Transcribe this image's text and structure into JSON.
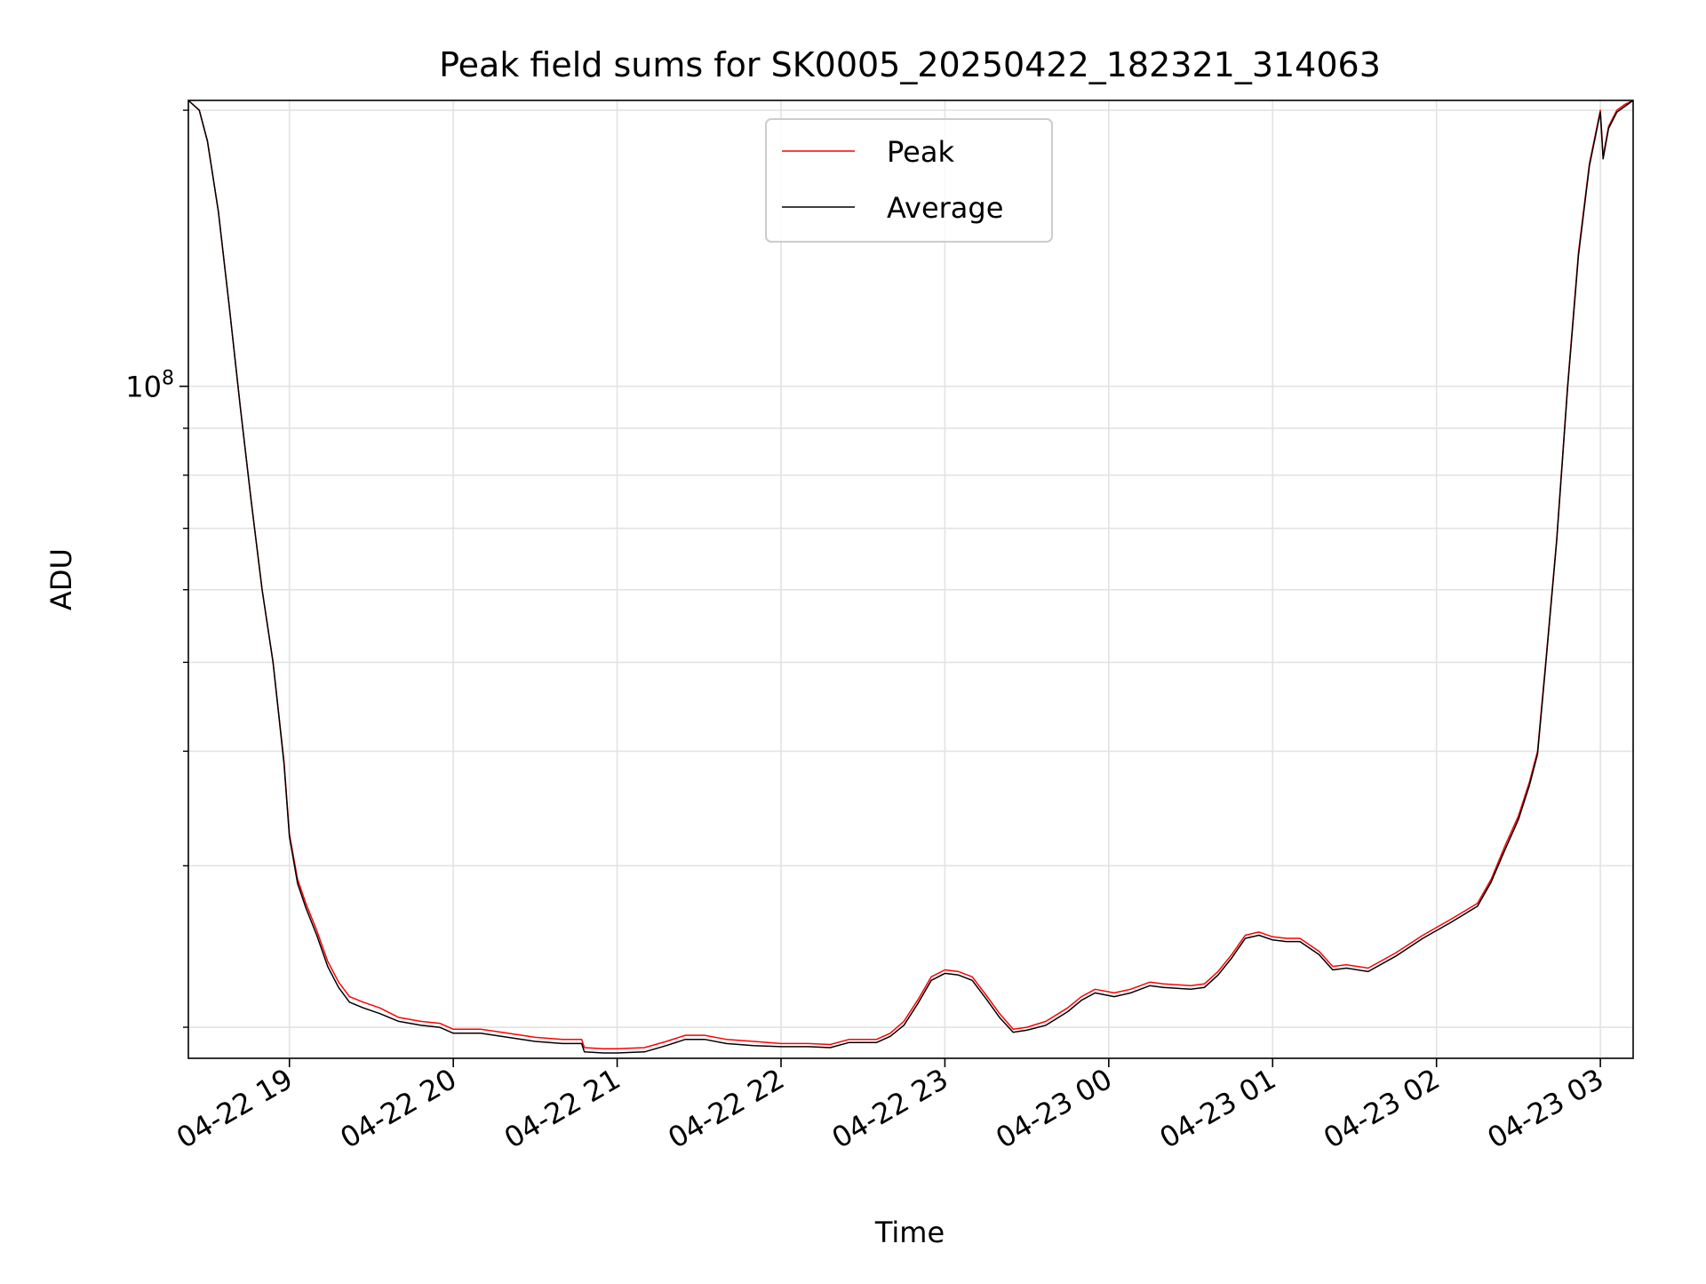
{
  "chart_data": {
    "type": "line",
    "title": "Peak field sums for SK0005_20250422_182321_314063",
    "xlabel": "Time",
    "ylabel": "ADU",
    "y_scale": "log",
    "grid": "on",
    "legend_placement": "upper center",
    "x_range": [
      "2025-04-22 18:23",
      "2025-04-23 03:12"
    ],
    "y_range": [
      18500000,
      205000000
    ],
    "x_ticks": [
      {
        "t": "2025-04-22 19:00",
        "label": "04-22 19"
      },
      {
        "t": "2025-04-22 20:00",
        "label": "04-22 20"
      },
      {
        "t": "2025-04-22 21:00",
        "label": "04-22 21"
      },
      {
        "t": "2025-04-22 22:00",
        "label": "04-22 22"
      },
      {
        "t": "2025-04-22 23:00",
        "label": "04-22 23"
      },
      {
        "t": "2025-04-23 00:00",
        "label": "04-23 00"
      },
      {
        "t": "2025-04-23 01:00",
        "label": "04-23 01"
      },
      {
        "t": "2025-04-23 02:00",
        "label": "04-23 02"
      },
      {
        "t": "2025-04-23 03:00",
        "label": "04-23 03"
      }
    ],
    "y_major_ticks": [
      {
        "value": 100000000,
        "base": "10",
        "exp": "8"
      }
    ],
    "y_minor_ticks": [
      20000000,
      30000000,
      40000000,
      50000000,
      60000000,
      70000000,
      80000000,
      90000000,
      200000000
    ],
    "series": [
      {
        "name": "Peak",
        "color": "#ff0000",
        "points": [
          [
            "2025-04-22 18:23",
            205000000
          ],
          [
            "2025-04-22 18:27",
            200000000
          ],
          [
            "2025-04-22 18:30",
            185000000
          ],
          [
            "2025-04-22 18:34",
            155000000
          ],
          [
            "2025-04-22 18:38",
            122000000
          ],
          [
            "2025-04-22 18:42",
            95000000
          ],
          [
            "2025-04-22 18:46",
            75000000
          ],
          [
            "2025-04-22 18:50",
            60000000
          ],
          [
            "2025-04-22 18:54",
            50000000
          ],
          [
            "2025-04-22 18:58",
            39000000
          ],
          [
            "2025-04-22 19:00",
            32500000
          ],
          [
            "2025-04-22 19:03",
            29000000
          ],
          [
            "2025-04-22 19:06",
            27300000
          ],
          [
            "2025-04-22 19:10",
            25500000
          ],
          [
            "2025-04-22 19:14",
            23600000
          ],
          [
            "2025-04-22 19:18",
            22400000
          ],
          [
            "2025-04-22 19:22",
            21600000
          ],
          [
            "2025-04-22 19:27",
            21300000
          ],
          [
            "2025-04-22 19:33",
            21000000
          ],
          [
            "2025-04-22 19:40",
            20500000
          ],
          [
            "2025-04-22 19:48",
            20300000
          ],
          [
            "2025-04-22 19:55",
            20200000
          ],
          [
            "2025-04-22 20:00",
            19900000
          ],
          [
            "2025-04-22 20:10",
            19900000
          ],
          [
            "2025-04-22 20:20",
            19700000
          ],
          [
            "2025-04-22 20:30",
            19500000
          ],
          [
            "2025-04-22 20:40",
            19400000
          ],
          [
            "2025-04-22 20:47",
            19400000
          ],
          [
            "2025-04-22 20:48",
            19000000
          ],
          [
            "2025-04-22 20:55",
            18950000
          ],
          [
            "2025-04-22 21:00",
            18950000
          ],
          [
            "2025-04-22 21:10",
            19000000
          ],
          [
            "2025-04-22 21:18",
            19300000
          ],
          [
            "2025-04-22 21:25",
            19600000
          ],
          [
            "2025-04-22 21:32",
            19600000
          ],
          [
            "2025-04-22 21:40",
            19400000
          ],
          [
            "2025-04-22 21:50",
            19300000
          ],
          [
            "2025-04-22 22:00",
            19200000
          ],
          [
            "2025-04-22 22:10",
            19200000
          ],
          [
            "2025-04-22 22:18",
            19150000
          ],
          [
            "2025-04-22 22:25",
            19400000
          ],
          [
            "2025-04-22 22:35",
            19400000
          ],
          [
            "2025-04-22 22:40",
            19700000
          ],
          [
            "2025-04-22 22:45",
            20300000
          ],
          [
            "2025-04-22 22:50",
            21400000
          ],
          [
            "2025-04-22 22:55",
            22700000
          ],
          [
            "2025-04-22 23:00",
            23100000
          ],
          [
            "2025-04-22 23:05",
            23000000
          ],
          [
            "2025-04-22 23:10",
            22700000
          ],
          [
            "2025-04-22 23:15",
            21700000
          ],
          [
            "2025-04-22 23:20",
            20700000
          ],
          [
            "2025-04-22 23:25",
            19900000
          ],
          [
            "2025-04-22 23:30",
            20000000
          ],
          [
            "2025-04-22 23:37",
            20300000
          ],
          [
            "2025-04-22 23:45",
            21000000
          ],
          [
            "2025-04-22 23:50",
            21600000
          ],
          [
            "2025-04-22 23:55",
            22000000
          ],
          [
            "2025-04-23 00:02",
            21800000
          ],
          [
            "2025-04-23 00:08",
            22000000
          ],
          [
            "2025-04-23 00:15",
            22400000
          ],
          [
            "2025-04-23 00:20",
            22300000
          ],
          [
            "2025-04-23 00:30",
            22200000
          ],
          [
            "2025-04-23 00:35",
            22300000
          ],
          [
            "2025-04-23 00:40",
            23000000
          ],
          [
            "2025-04-23 00:45",
            24000000
          ],
          [
            "2025-04-23 00:50",
            25200000
          ],
          [
            "2025-04-23 00:55",
            25400000
          ],
          [
            "2025-04-23 01:00",
            25100000
          ],
          [
            "2025-04-23 01:05",
            25000000
          ],
          [
            "2025-04-23 01:10",
            25000000
          ],
          [
            "2025-04-23 01:17",
            24200000
          ],
          [
            "2025-04-23 01:22",
            23300000
          ],
          [
            "2025-04-23 01:27",
            23400000
          ],
          [
            "2025-04-23 01:35",
            23200000
          ],
          [
            "2025-04-23 01:45",
            24100000
          ],
          [
            "2025-04-23 01:55",
            25200000
          ],
          [
            "2025-04-23 02:05",
            26200000
          ],
          [
            "2025-04-23 02:15",
            27300000
          ],
          [
            "2025-04-23 02:20",
            29000000
          ],
          [
            "2025-04-23 02:25",
            31500000
          ],
          [
            "2025-04-23 02:30",
            34000000
          ],
          [
            "2025-04-23 02:34",
            37000000
          ],
          [
            "2025-04-23 02:37",
            40000000
          ],
          [
            "2025-04-23 02:40",
            50000000
          ],
          [
            "2025-04-23 02:44",
            68000000
          ],
          [
            "2025-04-23 02:48",
            100000000
          ],
          [
            "2025-04-23 02:52",
            140000000
          ],
          [
            "2025-04-23 02:56",
            175000000
          ],
          [
            "2025-04-23 03:00",
            200000000
          ],
          [
            "2025-04-23 03:01",
            178000000
          ],
          [
            "2025-04-23 03:03",
            192000000
          ],
          [
            "2025-04-23 03:06",
            200000000
          ],
          [
            "2025-04-23 03:09",
            203000000
          ],
          [
            "2025-04-23 03:12",
            205000000
          ]
        ]
      },
      {
        "name": "Average",
        "color": "#000000",
        "points": [
          [
            "2025-04-22 18:23",
            205000000
          ],
          [
            "2025-04-22 18:27",
            200000000
          ],
          [
            "2025-04-22 18:30",
            185000000
          ],
          [
            "2025-04-22 18:34",
            155000000
          ],
          [
            "2025-04-22 18:38",
            122000000
          ],
          [
            "2025-04-22 18:42",
            95000000
          ],
          [
            "2025-04-22 18:46",
            75000000
          ],
          [
            "2025-04-22 18:50",
            60000000
          ],
          [
            "2025-04-22 18:54",
            50000000
          ],
          [
            "2025-04-22 18:58",
            38800000
          ],
          [
            "2025-04-22 19:00",
            32300000
          ],
          [
            "2025-04-22 19:03",
            28700000
          ],
          [
            "2025-04-22 19:06",
            27000000
          ],
          [
            "2025-04-22 19:10",
            25200000
          ],
          [
            "2025-04-22 19:14",
            23300000
          ],
          [
            "2025-04-22 19:18",
            22100000
          ],
          [
            "2025-04-22 19:22",
            21300000
          ],
          [
            "2025-04-22 19:27",
            21000000
          ],
          [
            "2025-04-22 19:33",
            20700000
          ],
          [
            "2025-04-22 19:40",
            20300000
          ],
          [
            "2025-04-22 19:48",
            20100000
          ],
          [
            "2025-04-22 19:55",
            20000000
          ],
          [
            "2025-04-22 20:00",
            19700000
          ],
          [
            "2025-04-22 20:10",
            19700000
          ],
          [
            "2025-04-22 20:20",
            19500000
          ],
          [
            "2025-04-22 20:30",
            19300000
          ],
          [
            "2025-04-22 20:40",
            19200000
          ],
          [
            "2025-04-22 20:47",
            19200000
          ],
          [
            "2025-04-22 20:48",
            18800000
          ],
          [
            "2025-04-22 20:55",
            18750000
          ],
          [
            "2025-04-22 21:00",
            18750000
          ],
          [
            "2025-04-22 21:10",
            18800000
          ],
          [
            "2025-04-22 21:18",
            19100000
          ],
          [
            "2025-04-22 21:25",
            19400000
          ],
          [
            "2025-04-22 21:32",
            19400000
          ],
          [
            "2025-04-22 21:40",
            19200000
          ],
          [
            "2025-04-22 21:50",
            19100000
          ],
          [
            "2025-04-22 22:00",
            19050000
          ],
          [
            "2025-04-22 22:10",
            19050000
          ],
          [
            "2025-04-22 22:18",
            19000000
          ],
          [
            "2025-04-22 22:25",
            19250000
          ],
          [
            "2025-04-22 22:35",
            19250000
          ],
          [
            "2025-04-22 22:40",
            19550000
          ],
          [
            "2025-04-22 22:45",
            20100000
          ],
          [
            "2025-04-22 22:50",
            21200000
          ],
          [
            "2025-04-22 22:55",
            22500000
          ],
          [
            "2025-04-22 23:00",
            22900000
          ],
          [
            "2025-04-22 23:05",
            22800000
          ],
          [
            "2025-04-22 23:10",
            22500000
          ],
          [
            "2025-04-22 23:15",
            21500000
          ],
          [
            "2025-04-22 23:20",
            20500000
          ],
          [
            "2025-04-22 23:25",
            19750000
          ],
          [
            "2025-04-22 23:30",
            19850000
          ],
          [
            "2025-04-22 23:37",
            20100000
          ],
          [
            "2025-04-22 23:45",
            20800000
          ],
          [
            "2025-04-22 23:50",
            21400000
          ],
          [
            "2025-04-22 23:55",
            21800000
          ],
          [
            "2025-04-23 00:02",
            21600000
          ],
          [
            "2025-04-23 00:08",
            21800000
          ],
          [
            "2025-04-23 00:15",
            22200000
          ],
          [
            "2025-04-23 00:20",
            22100000
          ],
          [
            "2025-04-23 00:30",
            22000000
          ],
          [
            "2025-04-23 00:35",
            22100000
          ],
          [
            "2025-04-23 00:40",
            22800000
          ],
          [
            "2025-04-23 00:45",
            23800000
          ],
          [
            "2025-04-23 00:50",
            25000000
          ],
          [
            "2025-04-23 00:55",
            25200000
          ],
          [
            "2025-04-23 01:00",
            24900000
          ],
          [
            "2025-04-23 01:05",
            24800000
          ],
          [
            "2025-04-23 01:10",
            24800000
          ],
          [
            "2025-04-23 01:17",
            24000000
          ],
          [
            "2025-04-23 01:22",
            23100000
          ],
          [
            "2025-04-23 01:27",
            23200000
          ],
          [
            "2025-04-23 01:35",
            23000000
          ],
          [
            "2025-04-23 01:45",
            23900000
          ],
          [
            "2025-04-23 01:55",
            25000000
          ],
          [
            "2025-04-23 02:05",
            26000000
          ],
          [
            "2025-04-23 02:15",
            27100000
          ],
          [
            "2025-04-23 02:20",
            28800000
          ],
          [
            "2025-04-23 02:25",
            31200000
          ],
          [
            "2025-04-23 02:30",
            33700000
          ],
          [
            "2025-04-23 02:34",
            36700000
          ],
          [
            "2025-04-23 02:37",
            39700000
          ],
          [
            "2025-04-23 02:40",
            49700000
          ],
          [
            "2025-04-23 02:44",
            67700000
          ],
          [
            "2025-04-23 02:48",
            99500000
          ],
          [
            "2025-04-23 02:52",
            139000000
          ],
          [
            "2025-04-23 02:56",
            174000000
          ],
          [
            "2025-04-23 03:00",
            199000000
          ],
          [
            "2025-04-23 03:01",
            177000000
          ],
          [
            "2025-04-23 03:03",
            191000000
          ],
          [
            "2025-04-23 03:06",
            199000000
          ],
          [
            "2025-04-23 03:09",
            202000000
          ],
          [
            "2025-04-23 03:12",
            205000000
          ]
        ]
      }
    ]
  }
}
